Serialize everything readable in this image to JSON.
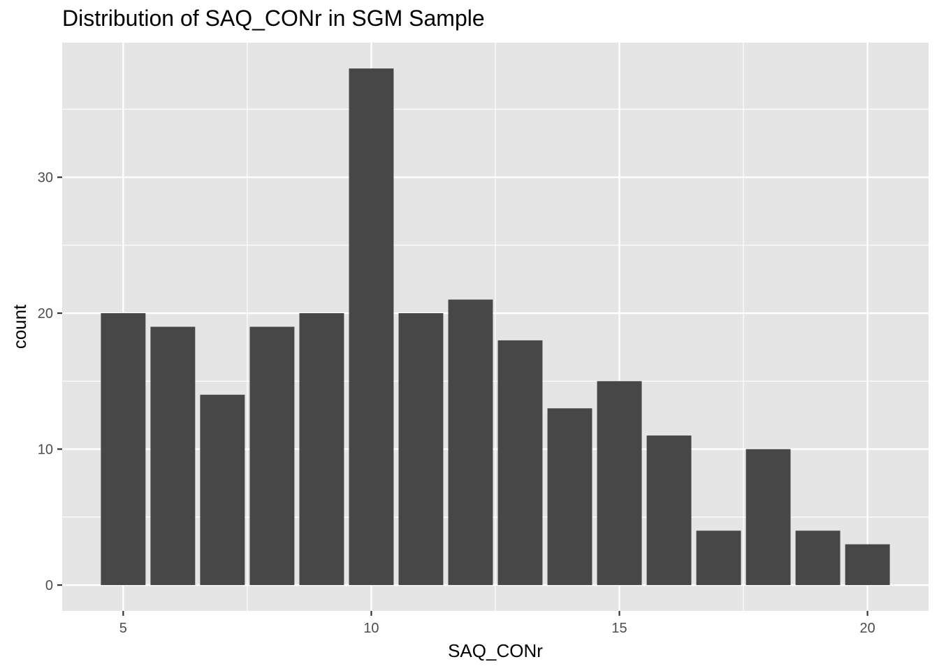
{
  "chart_data": {
    "type": "bar",
    "title": "Distribution of SAQ_CONr in SGM Sample",
    "xlabel": "SAQ_CONr",
    "ylabel": "count",
    "x": [
      5,
      6,
      7,
      8,
      9,
      10,
      11,
      12,
      13,
      14,
      15,
      16,
      17,
      18,
      19,
      20
    ],
    "values": [
      20,
      19,
      14,
      19,
      20,
      38,
      20,
      21,
      18,
      13,
      15,
      11,
      4,
      10,
      4,
      3
    ],
    "xlim": [
      3.77,
      21.23
    ],
    "ylim": [
      -1.9,
      39.9
    ],
    "xticks": [
      5,
      10,
      15,
      20
    ],
    "yticks": [
      0,
      10,
      20,
      30
    ],
    "grid": true,
    "legend": "none",
    "colors": {
      "panel": "#e5e5e5",
      "bar": "#474747",
      "grid": "#ffffff"
    }
  }
}
